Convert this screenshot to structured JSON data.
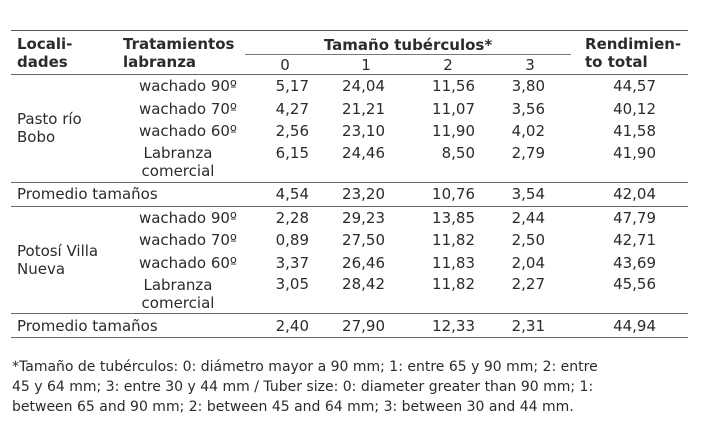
{
  "table": {
    "header": {
      "localidades": "Locali-\ndades",
      "tratamientos": "Tratamientos\nlabranza",
      "tamano": "Tamaño tubérculos*",
      "rendimiento": "Rendimien-\nto total",
      "sizes": [
        "0",
        "1",
        "2",
        "3"
      ]
    },
    "groups": [
      {
        "location": "Pasto río\nBobo",
        "rows": [
          {
            "treatment": "wachado 90º",
            "values": [
              "5,17",
              "24,04",
              "11,56",
              "3,80"
            ],
            "total": "44,57"
          },
          {
            "treatment": "wachado 70º",
            "values": [
              "4,27",
              "21,21",
              "11,07",
              "3,56"
            ],
            "total": "40,12"
          },
          {
            "treatment": "wachado 60º",
            "values": [
              "2,56",
              "23,10",
              "11,90",
              "4,02"
            ],
            "total": "41,58"
          },
          {
            "treatment": "Labranza\ncomercial",
            "values": [
              "6,15",
              "24,46",
              "8,50",
              "2,79"
            ],
            "total": "41,90"
          }
        ],
        "average": {
          "label": "Promedio tamaños",
          "values": [
            "4,54",
            "23,20",
            "10,76",
            "3,54"
          ],
          "total": "42,04"
        }
      },
      {
        "location": "Potosí Villa\nNueva",
        "rows": [
          {
            "treatment": "wachado 90º",
            "values": [
              "2,28",
              "29,23",
              "13,85",
              "2,44"
            ],
            "total": "47,79"
          },
          {
            "treatment": "wachado 70º",
            "values": [
              "0,89",
              "27,50",
              "11,82",
              "2,50"
            ],
            "total": "42,71"
          },
          {
            "treatment": "wachado 60º",
            "values": [
              "3,37",
              "26,46",
              "11,83",
              "2,04"
            ],
            "total": "43,69"
          },
          {
            "treatment": "Labranza\ncomercial",
            "values": [
              "3,05",
              "28,42",
              "11,82",
              "2,27"
            ],
            "total": "45,56"
          }
        ],
        "average": {
          "label": "Promedio tamaños",
          "values": [
            "2,40",
            "27,90",
            "12,33",
            "2,31"
          ],
          "total": "44,94"
        }
      }
    ]
  },
  "footnote": "*Tamaño de tubérculos: 0: diámetro mayor a 90 mm; 1: entre 65 y 90 mm; 2: entre\n45 y 64 mm; 3: entre 30 y 44 mm / Tuber size: 0: diameter greater than 90 mm; 1:\nbetween 65 and 90 mm; 2: between 45 and 64 mm; 3: between 30 and 44 mm."
}
